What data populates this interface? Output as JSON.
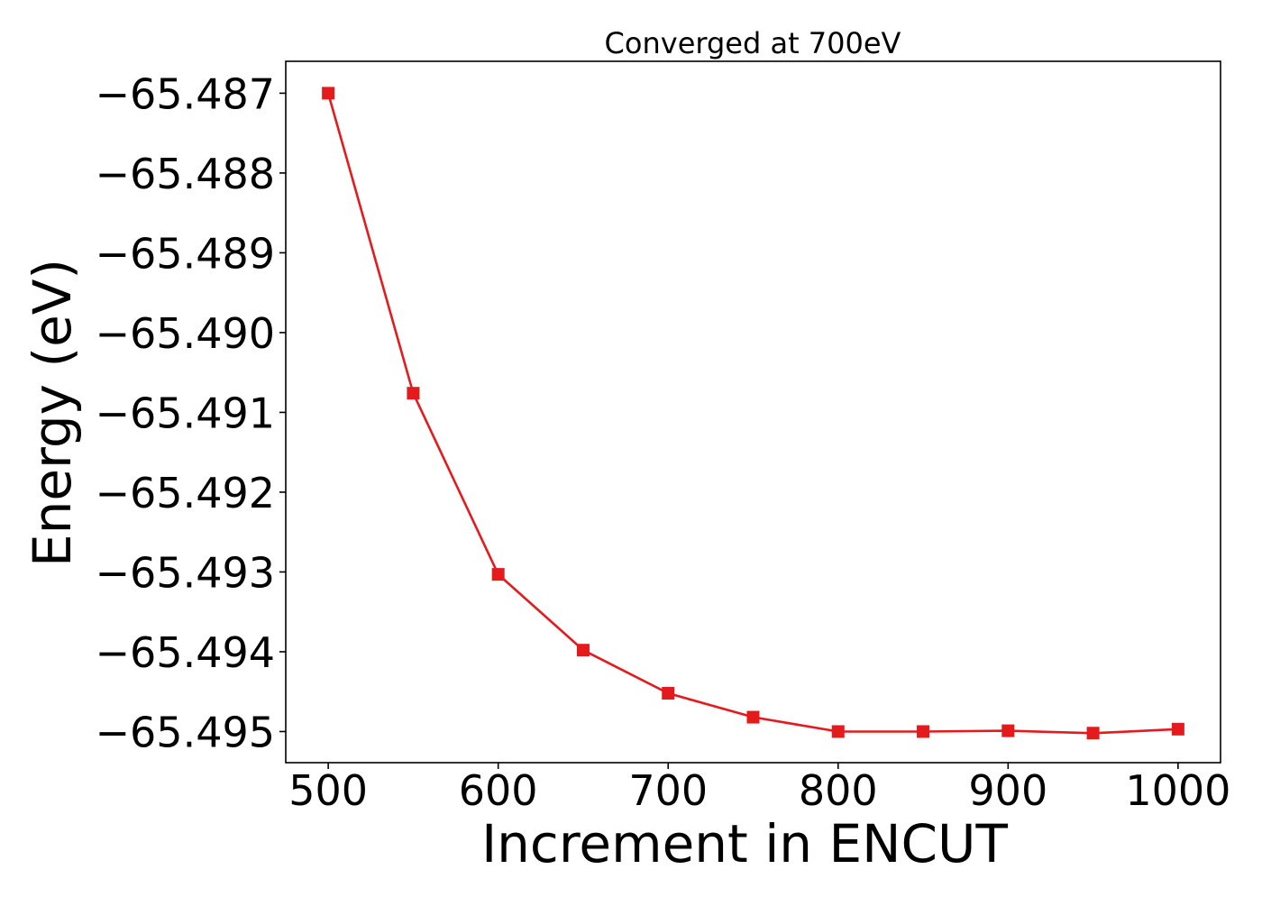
{
  "chart_data": {
    "type": "line",
    "title": "Converged at 700eV",
    "xlabel": "Increment in ENCUT",
    "ylabel": "Energy (eV)",
    "xlim": [
      475,
      1025
    ],
    "ylim": [
      -65.49539,
      -65.4866
    ],
    "xticks": [
      500,
      600,
      700,
      800,
      900,
      1000
    ],
    "xtick_labels": [
      "500",
      "600",
      "700",
      "800",
      "900",
      "1000"
    ],
    "yticks": [
      -65.487,
      -65.488,
      -65.489,
      -65.49,
      -65.491,
      -65.492,
      -65.493,
      -65.494,
      -65.495
    ],
    "ytick_labels": [
      "−65.487",
      "−65.488",
      "−65.489",
      "−65.490",
      "−65.491",
      "−65.492",
      "−65.493",
      "−65.494",
      "−65.495"
    ],
    "grid": false,
    "series": [
      {
        "color": "#e41a1c",
        "marker": "square",
        "x": [
          500,
          550,
          600,
          650,
          700,
          750,
          800,
          850,
          900,
          950,
          1000
        ],
        "y": [
          -65.487,
          -65.49076,
          -65.49303,
          -65.49398,
          -65.49452,
          -65.49482,
          -65.495,
          -65.495,
          -65.49499,
          -65.49502,
          -65.49497
        ]
      }
    ]
  }
}
